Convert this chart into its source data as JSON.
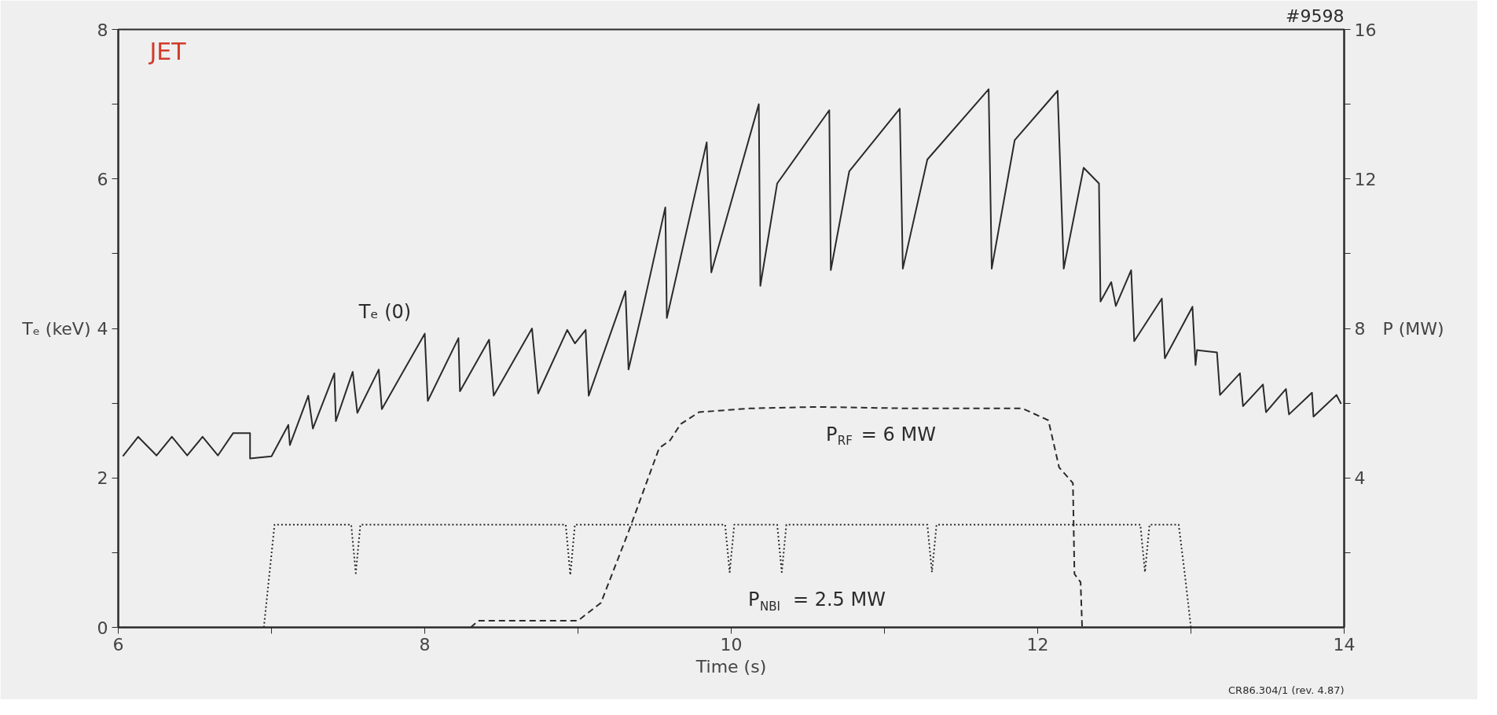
{
  "chart_data": {
    "type": "line",
    "xlabel": "Time (s)",
    "ylabel": "Tₑ (keV)",
    "y2label": "P (MW)",
    "xlim": [
      6,
      14
    ],
    "xticks": [
      6,
      {
        "value": 7,
        "label": null
      },
      8,
      {
        "value": 9,
        "label": null
      },
      10,
      {
        "value": 11,
        "label": null
      },
      12,
      {
        "value": 13,
        "label": null
      },
      14
    ],
    "ylim": [
      0,
      8
    ],
    "yticks": [
      0,
      {
        "value": 1,
        "label": null
      },
      2,
      {
        "value": 3,
        "label": null
      },
      4,
      {
        "value": 5,
        "label": null
      },
      6,
      {
        "value": 7,
        "label": null
      },
      8
    ],
    "y2lim": [
      0,
      16
    ],
    "y2ticks": [
      {
        "value": 2,
        "label": null
      },
      4,
      {
        "value": 6,
        "label": null
      },
      8,
      {
        "value": 10,
        "label": null
      },
      12,
      {
        "value": 14,
        "label": null
      },
      16
    ],
    "grid": false,
    "marker": "none",
    "series": [
      {
        "color": "#2b2b2b",
        "line_style": "solid",
        "x": [
          6.03,
          6.13,
          6.25,
          6.35,
          6.45,
          6.55,
          6.65,
          6.75,
          6.86,
          6.86,
          7.0,
          7.11,
          7.12,
          7.24,
          7.27,
          7.41,
          7.42,
          7.53,
          7.56,
          7.7,
          7.72,
          8.0,
          8.02,
          8.22,
          8.23,
          8.42,
          8.45,
          8.7,
          8.74,
          8.93,
          8.98,
          9.05,
          9.07,
          9.31,
          9.33,
          9.42,
          9.57,
          9.58,
          9.84,
          9.87,
          10.18,
          10.19,
          10.3,
          10.64,
          10.65,
          10.77,
          11.1,
          11.12,
          11.28,
          11.68,
          11.7,
          11.85,
          12.13,
          12.17,
          12.3,
          12.4,
          12.41,
          12.48,
          12.51,
          12.61,
          12.63,
          12.81,
          12.83,
          13.01,
          13.03,
          13.04,
          13.17,
          13.19,
          13.32,
          13.34,
          13.47,
          13.49,
          13.62,
          13.64,
          13.79,
          13.8,
          13.95,
          13.98
        ],
        "values": [
          2.29,
          2.55,
          2.3,
          2.55,
          2.3,
          2.55,
          2.3,
          2.6,
          2.6,
          2.26,
          2.29,
          2.71,
          2.44,
          3.1,
          2.66,
          3.4,
          2.76,
          3.42,
          2.87,
          3.45,
          2.92,
          3.93,
          3.03,
          3.87,
          3.16,
          3.85,
          3.1,
          4.0,
          3.13,
          3.98,
          3.8,
          3.98,
          3.1,
          4.5,
          3.45,
          4.24,
          5.62,
          4.14,
          6.49,
          4.75,
          7.0,
          4.57,
          5.94,
          6.92,
          4.78,
          6.1,
          6.94,
          4.8,
          6.26,
          7.2,
          4.8,
          6.52,
          7.18,
          4.8,
          6.15,
          5.94,
          4.36,
          4.62,
          4.3,
          4.78,
          3.83,
          4.4,
          3.6,
          4.29,
          3.51,
          3.71,
          3.68,
          3.11,
          3.4,
          2.96,
          3.25,
          2.88,
          3.19,
          2.85,
          3.14,
          2.82,
          3.11,
          2.99
        ]
      },
      {
        "color": "#2b2b2b",
        "line_style": "dashed",
        "axis": "y2",
        "x": [
          8.3,
          8.35,
          9.0,
          9.15,
          9.33,
          9.53,
          9.6,
          9.67,
          9.79,
          10.12,
          10.56,
          11.16,
          11.9,
          12.07,
          12.14,
          12.23,
          12.24,
          12.28,
          12.29
        ],
        "values": [
          0,
          0.18,
          0.18,
          0.66,
          2.56,
          4.8,
          5.0,
          5.44,
          5.76,
          5.86,
          5.9,
          5.86,
          5.86,
          5.54,
          4.28,
          3.86,
          1.43,
          1.21,
          0
        ]
      },
      {
        "color": "#2b2b2b",
        "line_style": "dotted",
        "axis": "y2",
        "x": [
          6.95,
          7.02,
          7.52,
          7.55,
          7.58,
          8.92,
          8.95,
          8.98,
          9.96,
          9.99,
          10.02,
          10.3,
          10.33,
          10.36,
          11.28,
          11.31,
          11.34,
          12.67,
          12.7,
          12.73,
          12.92,
          12.96,
          13.0
        ],
        "values": [
          0,
          2.75,
          2.75,
          1.45,
          2.75,
          2.75,
          1.4,
          2.75,
          2.75,
          1.48,
          2.75,
          2.75,
          1.48,
          2.75,
          2.75,
          1.48,
          2.75,
          2.75,
          1.48,
          2.75,
          2.75,
          1.43,
          0
        ]
      }
    ],
    "annotations": [
      "JET",
      "#9598",
      "CR86.304/1 (rev. 4.87)",
      "Tₑ (0)",
      "P$_{RF}$ = 6 MW",
      "P$_{NBI}$ = 2.5 MW"
    ]
  }
}
